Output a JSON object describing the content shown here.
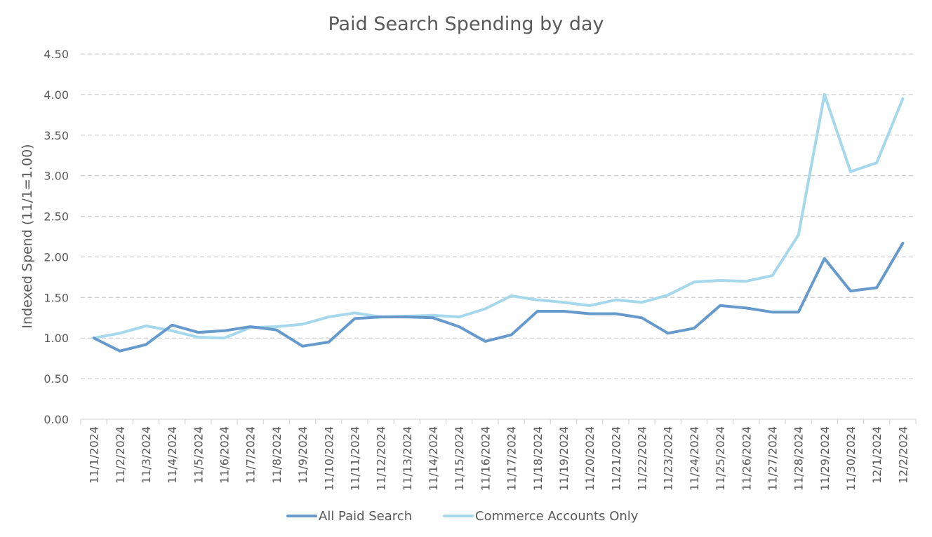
{
  "chart_data": {
    "type": "line",
    "title": "Paid Search Spending by day",
    "xlabel": "",
    "ylabel": "Indexed Spend (11/1=1.00)",
    "ylim": [
      0,
      4.5
    ],
    "yticks": [
      "0.00",
      "0.50",
      "1.00",
      "1.50",
      "2.00",
      "2.50",
      "3.00",
      "3.50",
      "4.00",
      "4.50"
    ],
    "grid": "horizontal dashed",
    "legend_position": "bottom",
    "categories": [
      "11/1/2024",
      "11/2/2024",
      "11/3/2024",
      "11/4/2024",
      "11/5/2024",
      "11/6/2024",
      "11/7/2024",
      "11/8/2024",
      "11/9/2024",
      "11/10/2024",
      "11/11/2024",
      "11/12/2024",
      "11/13/2024",
      "11/14/2024",
      "11/15/2024",
      "11/16/2024",
      "11/17/2024",
      "11/18/2024",
      "11/19/2024",
      "11/20/2024",
      "11/21/2024",
      "11/22/2024",
      "11/23/2024",
      "11/24/2024",
      "11/25/2024",
      "11/26/2024",
      "11/27/2024",
      "11/28/2024",
      "11/29/2024",
      "11/30/2024",
      "12/1/2024",
      "12/2/2024"
    ],
    "series": [
      {
        "name": "All Paid Search",
        "color": "#6699cc",
        "values": [
          1.0,
          0.84,
          0.92,
          1.16,
          1.07,
          1.09,
          1.14,
          1.1,
          0.9,
          0.95,
          1.24,
          1.26,
          1.26,
          1.25,
          1.14,
          0.96,
          1.04,
          1.33,
          1.33,
          1.3,
          1.3,
          1.25,
          1.06,
          1.12,
          1.4,
          1.37,
          1.32,
          1.32,
          1.98,
          1.58,
          1.62,
          2.17
        ]
      },
      {
        "name": "Commerce Accounts Only",
        "color": "#a6d8ec",
        "values": [
          1.0,
          1.06,
          1.15,
          1.09,
          1.01,
          1.0,
          1.13,
          1.14,
          1.17,
          1.26,
          1.31,
          1.26,
          1.27,
          1.28,
          1.26,
          1.36,
          1.52,
          1.47,
          1.44,
          1.4,
          1.47,
          1.44,
          1.53,
          1.69,
          1.71,
          1.7,
          1.77,
          2.27,
          4.0,
          3.05,
          3.16,
          3.95
        ]
      }
    ]
  }
}
